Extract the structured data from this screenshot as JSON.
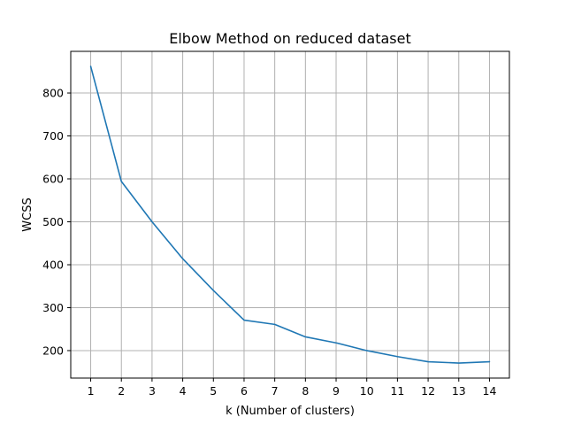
{
  "chart_data": {
    "type": "line",
    "title": "Elbow Method on reduced dataset",
    "xlabel": "k (Number of clusters)",
    "ylabel": "WCSS",
    "x": [
      1,
      2,
      3,
      4,
      5,
      6,
      7,
      8,
      9,
      10,
      11,
      12,
      13,
      14
    ],
    "series": [
      {
        "values": [
          862,
          594,
          500,
          414,
          340,
          271,
          261,
          232,
          218,
          200,
          186,
          174,
          171,
          174
        ]
      }
    ],
    "xticks": [
      "1",
      "2",
      "3",
      "4",
      "5",
      "6",
      "7",
      "8",
      "9",
      "10",
      "11",
      "12",
      "13",
      "14"
    ],
    "yticks": [
      "200",
      "300",
      "400",
      "500",
      "600",
      "700",
      "800"
    ],
    "xlim": [
      0.35,
      14.65
    ],
    "ylim": [
      136,
      897
    ],
    "grid": true,
    "line_color": "#1f77b4"
  }
}
